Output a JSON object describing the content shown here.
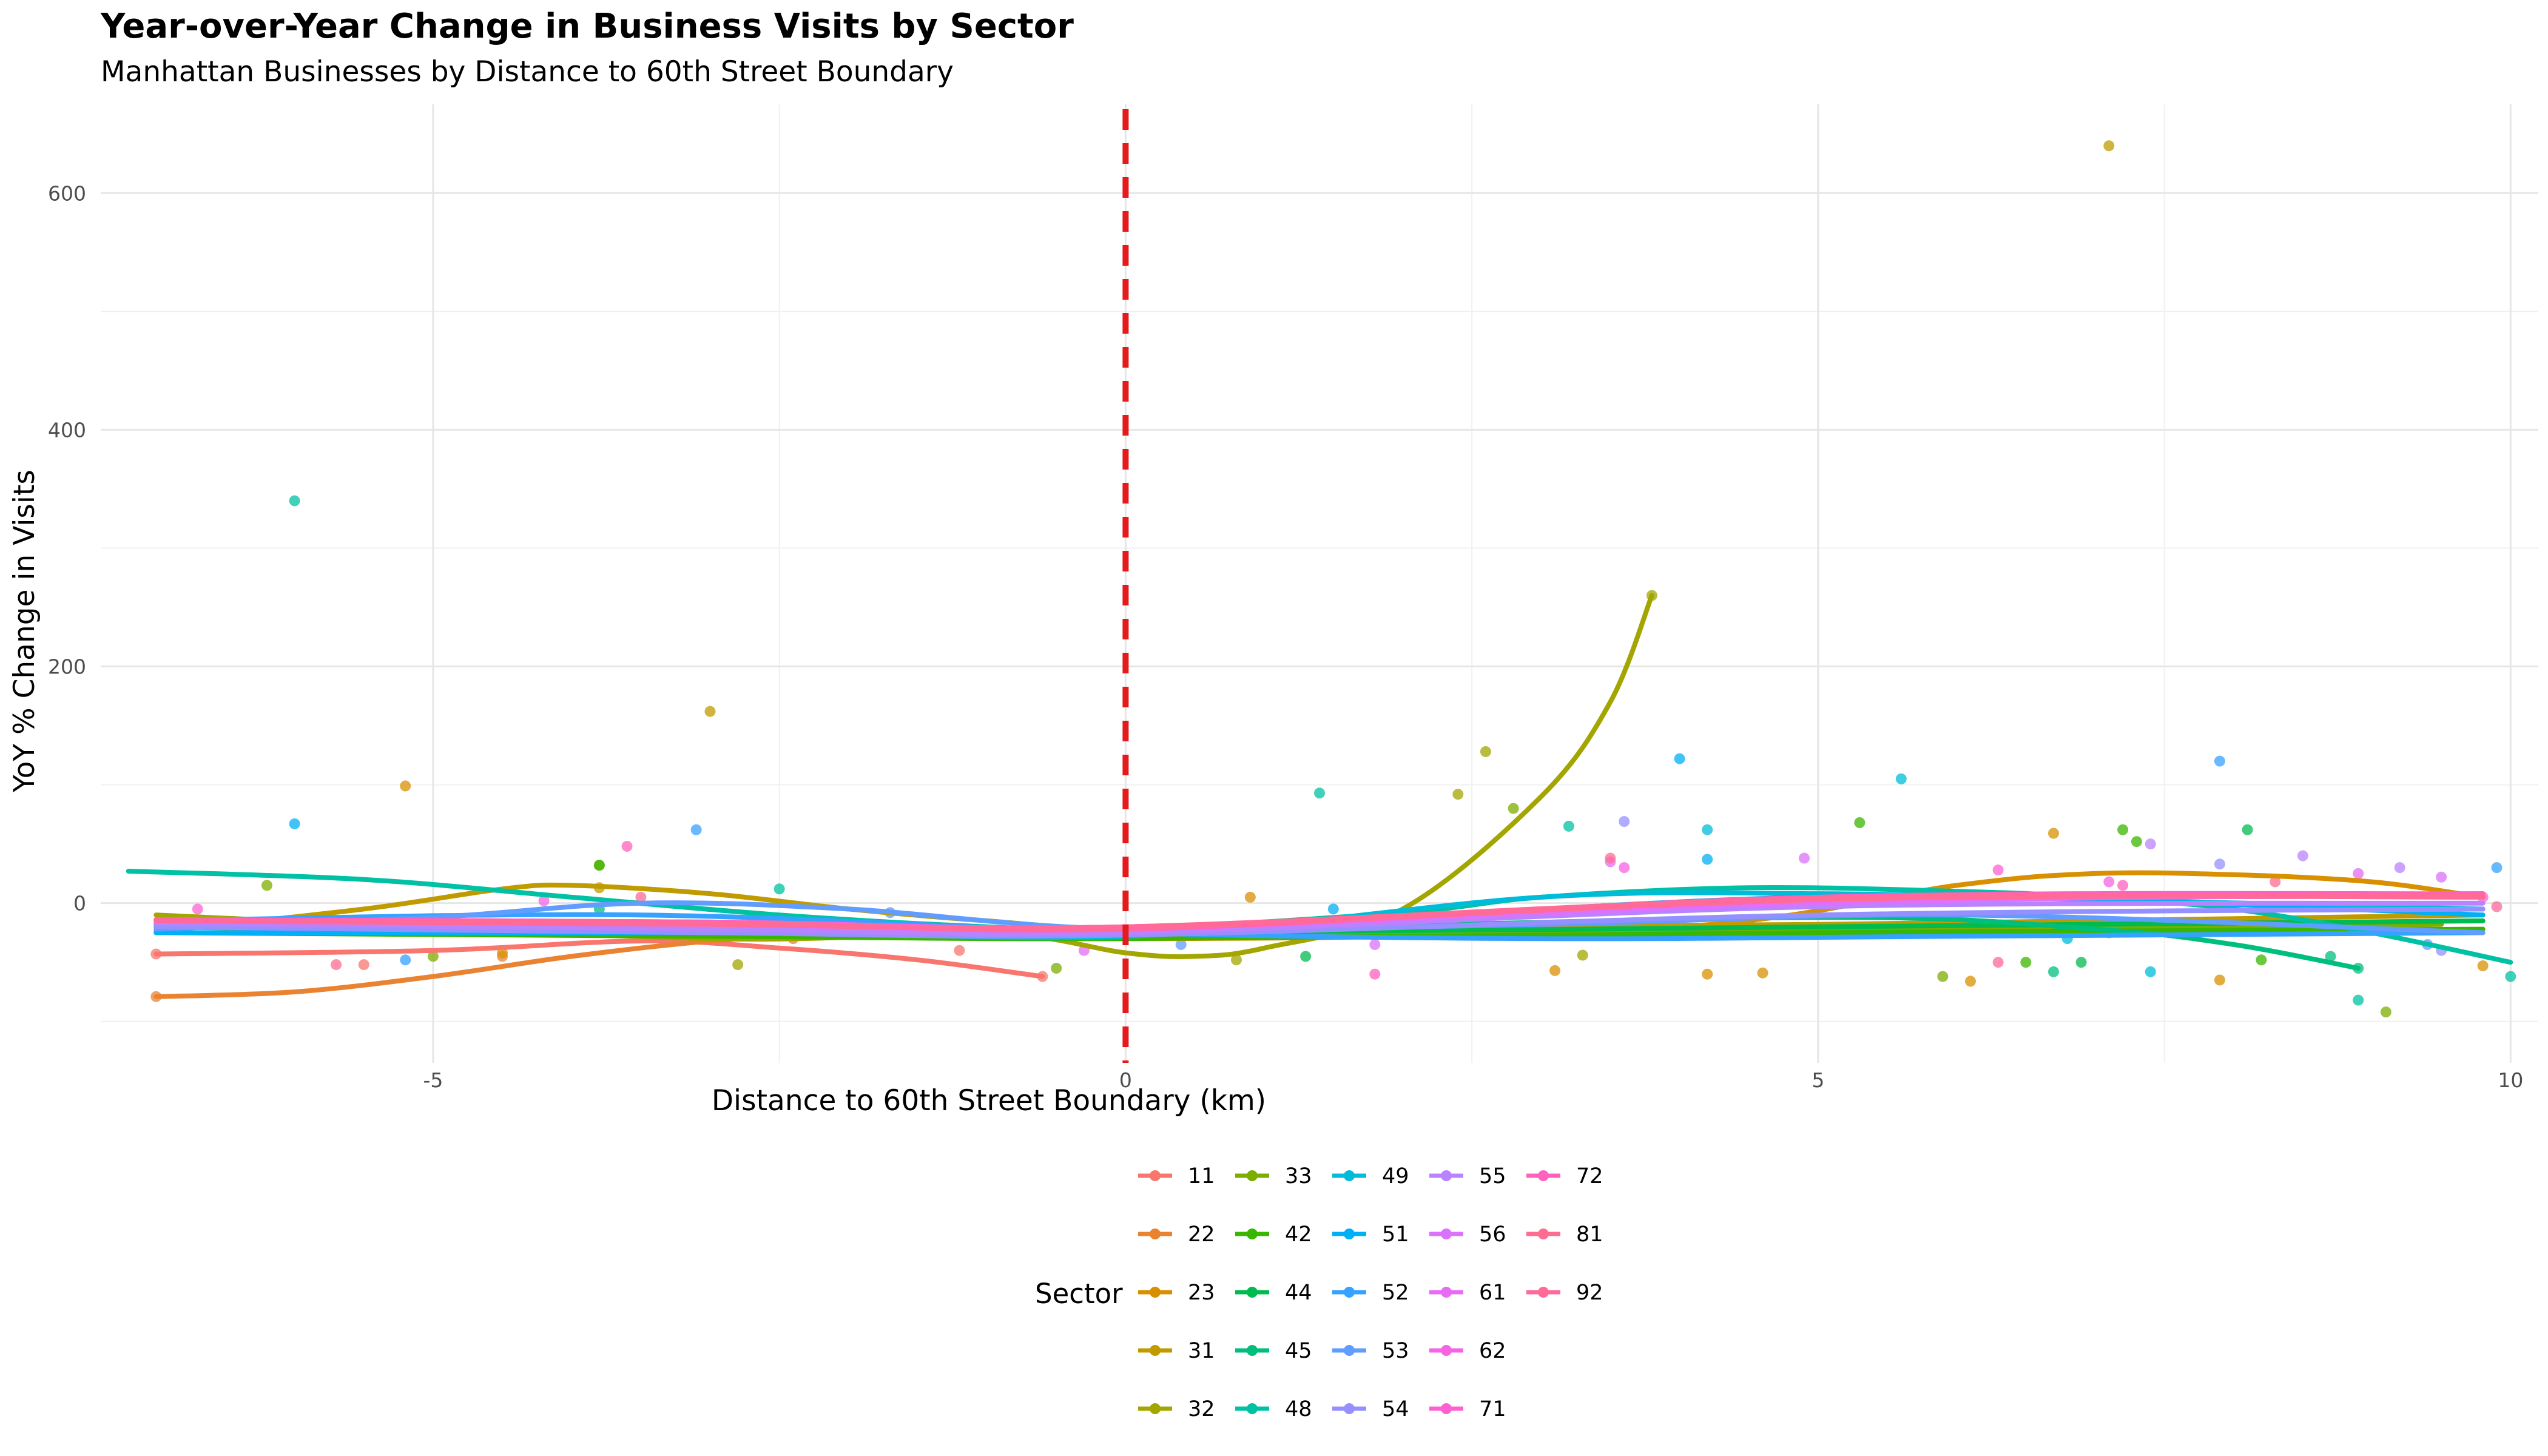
{
  "chart_data": {
    "type": "scatter",
    "title": "Year-over-Year Change in Business Visits by Sector",
    "subtitle": "Manhattan Businesses by Distance to 60th Street Boundary",
    "xlabel": "Distance to 60th Street Boundary (km)",
    "ylabel": "YoY % Change in Visits",
    "xlim": [
      -7.4,
      10.2
    ],
    "ylim": [
      -135,
      675
    ],
    "x_ticks": [
      -5,
      0,
      5,
      10
    ],
    "y_ticks": [
      0,
      200,
      400,
      600
    ],
    "grid": true,
    "reference_line": {
      "x": 0,
      "color": "#e41a1c",
      "style": "dashed"
    },
    "legend": {
      "title": "Sector",
      "position": "bottom"
    },
    "series": [
      {
        "name": "11",
        "color": "#F8766D",
        "smooth": [
          [
            -7.0,
            -43
          ],
          [
            -5.0,
            -40
          ],
          [
            -3.5,
            -32
          ],
          [
            -2.5,
            -38
          ],
          [
            -1.5,
            -48
          ],
          [
            -0.6,
            -62
          ]
        ],
        "points": [
          [
            -7.0,
            -43
          ],
          [
            -5.5,
            -52
          ],
          [
            -3.2,
            -30
          ],
          [
            -1.2,
            -40
          ],
          [
            -0.6,
            -62
          ]
        ]
      },
      {
        "name": "22",
        "color": "#EA8331",
        "smooth": [
          [
            -7.0,
            -79
          ],
          [
            -6.0,
            -75
          ],
          [
            -5.0,
            -62
          ],
          [
            -4.0,
            -45
          ],
          [
            -3.0,
            -32
          ],
          [
            -2.0,
            -25
          ],
          [
            -1.0,
            -23
          ]
        ],
        "points": [
          [
            -7.0,
            -79
          ],
          [
            -4.5,
            -45
          ],
          [
            -2.4,
            -30
          ],
          [
            -1.1,
            -25
          ]
        ]
      },
      {
        "name": "23",
        "color": "#D89000",
        "smooth": [
          [
            -7.0,
            -14
          ],
          [
            -4.0,
            -20
          ],
          [
            0.0,
            -30
          ],
          [
            4.0,
            -20
          ],
          [
            6.0,
            15
          ],
          [
            7.0,
            25
          ],
          [
            8.0,
            24
          ],
          [
            9.0,
            18
          ],
          [
            9.8,
            5
          ]
        ],
        "points": [
          [
            -5.2,
            99
          ],
          [
            -4.5,
            -42
          ],
          [
            0.9,
            5
          ],
          [
            3.1,
            -57
          ],
          [
            4.2,
            -60
          ],
          [
            4.6,
            -59
          ],
          [
            6.1,
            -66
          ],
          [
            6.7,
            59
          ],
          [
            7.9,
            -65
          ],
          [
            9.8,
            -53
          ]
        ]
      },
      {
        "name": "31",
        "color": "#C09B00",
        "smooth": [
          [
            -7.0,
            -24
          ],
          [
            -5.5,
            -5
          ],
          [
            -4.5,
            12
          ],
          [
            -4.0,
            15
          ],
          [
            -3.0,
            8
          ],
          [
            -2.0,
            -5
          ],
          [
            -1.0,
            -15
          ],
          [
            0.0,
            -22
          ],
          [
            2.0,
            -20
          ],
          [
            5.0,
            -18
          ],
          [
            9.8,
            -10
          ]
        ],
        "points": [
          [
            -3.0,
            162
          ],
          [
            7.1,
            640
          ],
          [
            -3.8,
            13
          ],
          [
            2.0,
            -15
          ],
          [
            5.6,
            -20
          ]
        ]
      },
      {
        "name": "32",
        "color": "#A3A500",
        "smooth": [
          [
            -7.0,
            -10
          ],
          [
            -3.0,
            -30
          ],
          [
            -1.0,
            -25
          ],
          [
            0.0,
            -42
          ],
          [
            0.5,
            -45
          ],
          [
            1.0,
            -38
          ],
          [
            2.0,
            -5
          ],
          [
            3.0,
            90
          ],
          [
            3.5,
            170
          ],
          [
            3.8,
            260
          ]
        ],
        "points": [
          [
            3.8,
            260
          ],
          [
            2.6,
            128
          ],
          [
            2.4,
            92
          ],
          [
            -2.8,
            -52
          ],
          [
            0.8,
            -48
          ],
          [
            3.3,
            -44
          ]
        ]
      },
      {
        "name": "33",
        "color": "#7CAE00",
        "smooth": [
          [
            -7.0,
            -20
          ],
          [
            -4.0,
            -25
          ],
          [
            0.0,
            -27
          ],
          [
            5.0,
            -23
          ],
          [
            9.5,
            -18
          ]
        ],
        "points": [
          [
            2.8,
            80
          ],
          [
            -6.2,
            15
          ],
          [
            -5.0,
            -45
          ],
          [
            -3.8,
            32
          ],
          [
            -0.5,
            -55
          ],
          [
            5.9,
            -62
          ],
          [
            9.1,
            -92
          ]
        ]
      },
      {
        "name": "42",
        "color": "#39B600",
        "smooth": [
          [
            -7.0,
            -25
          ],
          [
            -3.0,
            -28
          ],
          [
            0.0,
            -30
          ],
          [
            5.0,
            -25
          ],
          [
            9.8,
            -22
          ]
        ],
        "points": [
          [
            5.3,
            68
          ],
          [
            7.2,
            62
          ],
          [
            -3.8,
            32
          ],
          [
            7.3,
            52
          ],
          [
            8.2,
            -48
          ],
          [
            6.5,
            -50
          ]
        ]
      },
      {
        "name": "44",
        "color": "#00BB4E",
        "smooth": [
          [
            -7.0,
            -18
          ],
          [
            -3.0,
            -20
          ],
          [
            0.0,
            -25
          ],
          [
            5.0,
            -20
          ],
          [
            9.8,
            -15
          ]
        ],
        "points": [
          [
            8.1,
            62
          ],
          [
            1.3,
            -45
          ],
          [
            7.1,
            -25
          ],
          [
            6.9,
            -50
          ]
        ]
      },
      {
        "name": "45",
        "color": "#00BF7D",
        "smooth": [
          [
            -7.0,
            -20
          ],
          [
            -3.0,
            -22
          ],
          [
            0.0,
            -24
          ],
          [
            5.0,
            -12
          ],
          [
            7.0,
            -22
          ],
          [
            8.0,
            -35
          ],
          [
            8.9,
            -55
          ]
        ],
        "points": [
          [
            8.9,
            -55
          ],
          [
            -3.8,
            -5
          ],
          [
            6.7,
            -58
          ],
          [
            8.7,
            -45
          ]
        ]
      },
      {
        "name": "48",
        "color": "#00C1A3",
        "smooth": [
          [
            -7.2,
            27
          ],
          [
            -5.5,
            20
          ],
          [
            -4.0,
            5
          ],
          [
            -2.5,
            -10
          ],
          [
            -1.0,
            -20
          ],
          [
            0.0,
            -22
          ],
          [
            2.0,
            -8
          ],
          [
            3.0,
            5
          ],
          [
            4.5,
            13
          ],
          [
            6.0,
            10
          ],
          [
            7.0,
            5
          ],
          [
            8.0,
            -5
          ],
          [
            9.0,
            -25
          ],
          [
            10.0,
            -50
          ]
        ],
        "points": [
          [
            -6.0,
            340
          ],
          [
            1.4,
            93
          ],
          [
            3.2,
            65
          ],
          [
            -2.5,
            12
          ],
          [
            8.9,
            -82
          ],
          [
            10.0,
            -62
          ]
        ]
      },
      {
        "name": "49",
        "color": "#00BCD8",
        "smooth": [
          [
            -7.0,
            -20
          ],
          [
            -3.0,
            -22
          ],
          [
            0.0,
            -28
          ],
          [
            3.0,
            5
          ],
          [
            5.0,
            8
          ],
          [
            7.0,
            3
          ],
          [
            9.8,
            -5
          ]
        ],
        "points": [
          [
            5.6,
            105
          ],
          [
            4.2,
            62
          ],
          [
            6.8,
            -30
          ],
          [
            7.4,
            -58
          ]
        ]
      },
      {
        "name": "51",
        "color": "#00B0F6",
        "smooth": [
          [
            -7.0,
            -25
          ],
          [
            -3.0,
            -25
          ],
          [
            0.0,
            -25
          ],
          [
            3.0,
            -5
          ],
          [
            5.0,
            5
          ],
          [
            7.0,
            3
          ],
          [
            9.8,
            -10
          ]
        ],
        "points": [
          [
            -6.0,
            67
          ],
          [
            4.0,
            122
          ],
          [
            4.2,
            37
          ],
          [
            1.5,
            -5
          ]
        ]
      },
      {
        "name": "52",
        "color": "#35A2FF",
        "smooth": [
          [
            -7.0,
            -15
          ],
          [
            -3.5,
            -10
          ],
          [
            0.0,
            -25
          ],
          [
            3.0,
            -30
          ],
          [
            6.0,
            -28
          ],
          [
            9.8,
            -25
          ]
        ],
        "points": [
          [
            7.9,
            120
          ],
          [
            -3.1,
            62
          ],
          [
            -5.2,
            -48
          ],
          [
            9.9,
            30
          ]
        ]
      },
      {
        "name": "53",
        "color": "#619CFF",
        "smooth": [
          [
            -7.0,
            -22
          ],
          [
            -5.0,
            -12
          ],
          [
            -3.5,
            0
          ],
          [
            -2.0,
            -5
          ],
          [
            0.0,
            -22
          ],
          [
            3.0,
            -18
          ],
          [
            6.0,
            -10
          ],
          [
            9.8,
            -25
          ]
        ],
        "points": [
          [
            -1.7,
            -8
          ],
          [
            0.4,
            -35
          ],
          [
            9.4,
            -35
          ]
        ]
      },
      {
        "name": "54",
        "color": "#9590FF",
        "smooth": [
          [
            -7.0,
            -20
          ],
          [
            -3.0,
            -25
          ],
          [
            0.0,
            -27
          ],
          [
            5.0,
            -10
          ],
          [
            9.8,
            -5
          ]
        ],
        "points": [
          [
            3.6,
            69
          ],
          [
            7.9,
            33
          ],
          [
            6.1,
            -25
          ],
          [
            9.5,
            -40
          ]
        ]
      },
      {
        "name": "55",
        "color": "#B983FF",
        "smooth": [
          [
            -7.0,
            -17
          ],
          [
            -3.0,
            -22
          ],
          [
            0.0,
            -25
          ],
          [
            5.0,
            -3
          ],
          [
            9.8,
            0
          ]
        ],
        "points": [
          [
            7.4,
            50
          ],
          [
            8.5,
            40
          ],
          [
            9.2,
            30
          ]
        ]
      },
      {
        "name": "56",
        "color": "#DB72FB",
        "smooth": [
          [
            -7.0,
            -15
          ],
          [
            -3.0,
            -18
          ],
          [
            0.0,
            -22
          ],
          [
            5.0,
            0
          ],
          [
            9.8,
            8
          ]
        ],
        "points": [
          [
            4.9,
            38
          ],
          [
            9.5,
            22
          ],
          [
            1.8,
            -35
          ]
        ]
      },
      {
        "name": "61",
        "color": "#E76BF3",
        "smooth": [
          [
            -7.0,
            -14
          ],
          [
            -3.0,
            -17
          ],
          [
            0.0,
            -20
          ],
          [
            5.0,
            2
          ],
          [
            9.8,
            6
          ]
        ],
        "points": [
          [
            3.5,
            35
          ],
          [
            8.9,
            25
          ],
          [
            -0.3,
            -40
          ]
        ]
      },
      {
        "name": "62",
        "color": "#F564E3",
        "smooth": [
          [
            -7.0,
            -14
          ],
          [
            -3.0,
            -16
          ],
          [
            0.0,
            -20
          ],
          [
            5.0,
            3
          ],
          [
            9.8,
            6
          ]
        ],
        "points": [
          [
            3.6,
            30
          ],
          [
            7.1,
            18
          ],
          [
            -4.2,
            2
          ]
        ]
      },
      {
        "name": "71",
        "color": "#FD61D1",
        "smooth": [
          [
            -7.0,
            -14
          ],
          [
            -3.0,
            -16
          ],
          [
            0.0,
            -22
          ],
          [
            5.0,
            4
          ],
          [
            9.8,
            7
          ]
        ],
        "points": [
          [
            6.3,
            28
          ],
          [
            9.8,
            5
          ],
          [
            -6.7,
            -5
          ]
        ]
      },
      {
        "name": "72",
        "color": "#FF62BC",
        "smooth": [
          [
            -7.0,
            -14
          ],
          [
            -3.0,
            -16
          ],
          [
            0.0,
            -22
          ],
          [
            5.0,
            5
          ],
          [
            9.8,
            8
          ]
        ],
        "points": [
          [
            -3.6,
            48
          ],
          [
            1.8,
            -60
          ],
          [
            7.2,
            15
          ]
        ]
      },
      {
        "name": "81",
        "color": "#FF6C91",
        "smooth": [
          [
            -7.0,
            -15
          ],
          [
            -3.0,
            -17
          ],
          [
            0.0,
            -21
          ],
          [
            5.0,
            3
          ],
          [
            9.8,
            6
          ]
        ],
        "points": [
          [
            -5.7,
            -52
          ],
          [
            3.5,
            38
          ],
          [
            8.3,
            18
          ]
        ]
      },
      {
        "name": "92",
        "color": "#FF6A98",
        "smooth": [
          [
            -7.0,
            -15
          ],
          [
            -3.0,
            -18
          ],
          [
            0.0,
            -20
          ],
          [
            5.0,
            4
          ],
          [
            9.8,
            5
          ]
        ],
        "points": [
          [
            -3.5,
            5
          ],
          [
            6.3,
            -50
          ],
          [
            9.9,
            -3
          ]
        ]
      }
    ]
  }
}
